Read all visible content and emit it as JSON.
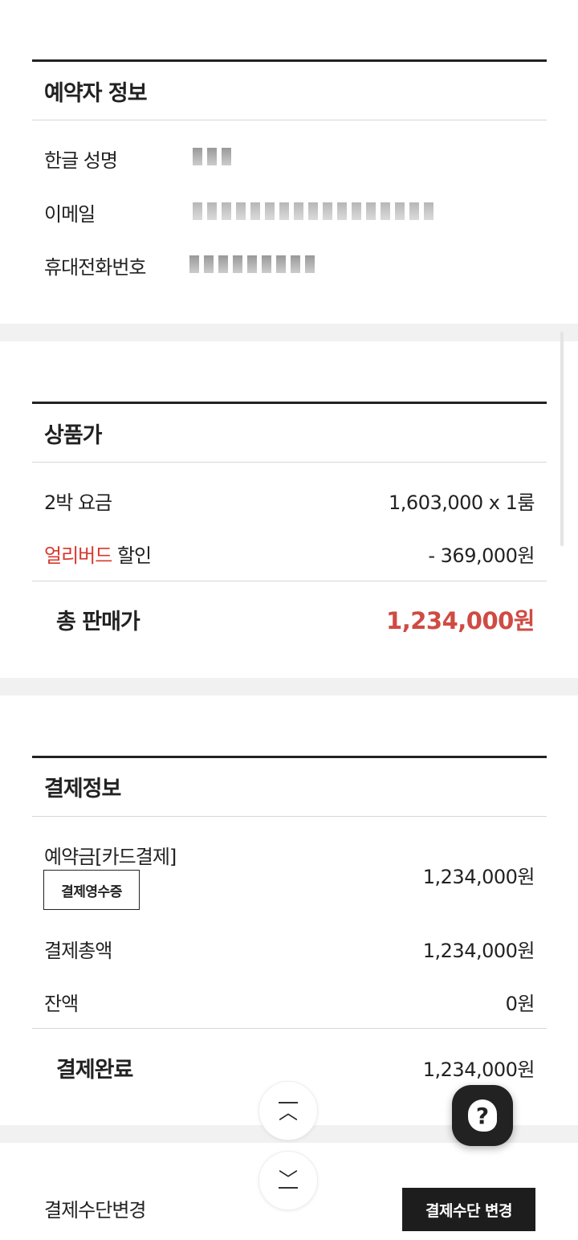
{
  "booker": {
    "title": "예약자 정보",
    "rows": [
      {
        "label": "한글 성명"
      },
      {
        "label": "이메일"
      },
      {
        "label": "휴대전화번호"
      }
    ]
  },
  "product": {
    "title": "상품가",
    "nights_label": "2박 요금",
    "nights_value": "1,603,000 x 1룸",
    "discount_highlight": "얼리버드",
    "discount_label": " 할인",
    "discount_value": "- 369,000원",
    "total_label": "총 판매가",
    "total_value": "1,234,000원",
    "accent": "#d7382e"
  },
  "payment": {
    "title": "결제정보",
    "deposit_label": "예약금[카드결제]",
    "receipt_button": "결제영수증",
    "deposit_value": "1,234,000원",
    "sum_label": "결제총액",
    "sum_value": "1,234,000원",
    "balance_label": "잔액",
    "balance_value": "0원",
    "done_label": "결제완료",
    "done_value": "1,234,000원"
  },
  "change": {
    "label": "결제수단변경",
    "button": "결제수단 변경"
  },
  "icons": {
    "up": "scroll-top-icon",
    "down": "scroll-bottom-icon",
    "help": "help-chat-icon"
  }
}
